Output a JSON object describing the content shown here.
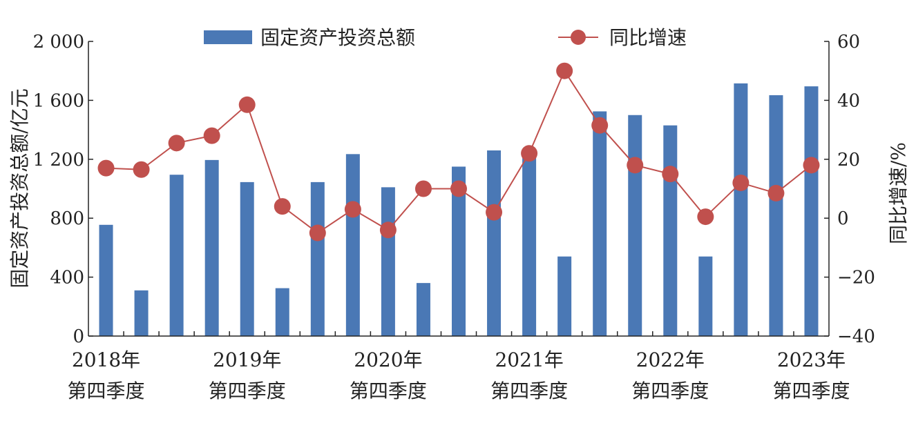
{
  "chart_data": {
    "type": "bar+line",
    "categories": [
      "2018年第四季度",
      "",
      "",
      "",
      "2019年第四季度",
      "",
      "",
      "",
      "2020年第四季度",
      "",
      "",
      "",
      "2021年第四季度",
      "",
      "",
      "",
      "2022年第四季度",
      "",
      "",
      "",
      "2023年第四季度"
    ],
    "x_tick_labels": [
      {
        "year": "2018年",
        "quarter": "第四季度"
      },
      {
        "year": "2019年",
        "quarter": "第四季度"
      },
      {
        "year": "2020年",
        "quarter": "第四季度"
      },
      {
        "year": "2021年",
        "quarter": "第四季度"
      },
      {
        "year": "2022年",
        "quarter": "第四季度"
      },
      {
        "year": "2023年",
        "quarter": "第四季度"
      }
    ],
    "series": [
      {
        "name": "固定资产投资总额",
        "type": "bar",
        "axis": "left",
        "color": "#4a78b5",
        "values": [
          755,
          310,
          1095,
          1195,
          1045,
          325,
          1045,
          1235,
          1010,
          360,
          1150,
          1260,
          1260,
          540,
          1525,
          1500,
          1430,
          540,
          1715,
          1635,
          1695
        ]
      },
      {
        "name": "同比增速",
        "type": "line",
        "axis": "right",
        "color": "#c0504d",
        "values": [
          17,
          16.5,
          25.5,
          28,
          38.5,
          4,
          -5,
          3,
          -4,
          10,
          10,
          2,
          22,
          50,
          31.5,
          18,
          15,
          0.5,
          12,
          8.5,
          18
        ]
      }
    ],
    "y_left": {
      "label": "固定资产投资总额/亿元",
      "ylim": [
        0,
        2000
      ],
      "ticks": [
        "0",
        "400",
        "800",
        "1 200",
        "1 600",
        "2 000"
      ]
    },
    "y_right": {
      "label": "同比增速/%",
      "ylim": [
        -40,
        60
      ],
      "ticks": [
        "−40",
        "−20",
        "0",
        "20",
        "40",
        "60"
      ]
    },
    "legend_position": "top",
    "grid": false
  }
}
